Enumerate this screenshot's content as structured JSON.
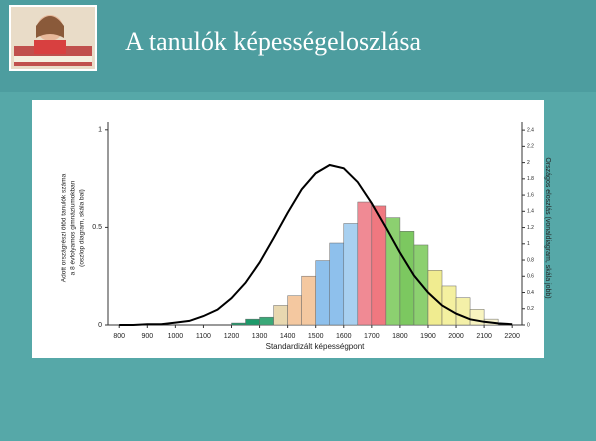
{
  "chart_data": {
    "type": "histogram",
    "title": "A tanulók képességeloszlása",
    "xlabel": "Standardizált képességpont",
    "ylabel": [
      "Adott országrészi ötöd tanulók száma",
      "a 8 évfolyamos gimnáziumokban",
      "(oszlop diagram, skála bal)"
    ],
    "y2label": "Országos eloszlás (vonaldiagram, skála jobb)",
    "bins": [
      1200,
      1250,
      1300,
      1350,
      1400,
      1450,
      1500,
      1550,
      1600,
      1650,
      1700,
      1750,
      1800,
      1850,
      1900,
      1950,
      2000,
      2050,
      2100,
      2150
    ],
    "values": [
      0.01,
      0.03,
      0.04,
      0.1,
      0.15,
      0.25,
      0.33,
      0.42,
      0.52,
      0.63,
      0.61,
      0.55,
      0.48,
      0.41,
      0.28,
      0.2,
      0.14,
      0.08,
      0.03
    ],
    "colors": [
      "#1e9a6a",
      "#1e9a6a",
      "#3aa878",
      "#e8d8b0",
      "#f4c8a0",
      "#f4c8a0",
      "#8ec0ec",
      "#8ec0ec",
      "#a8d0f0",
      "#f08a94",
      "#f07880",
      "#8cd070",
      "#7cc860",
      "#8cd070",
      "#f0ec90",
      "#f4f0a0",
      "#f4f0a8",
      "#f8f4c0",
      "#f8f4d0"
    ],
    "curve": {
      "type": "line",
      "axis": "y2",
      "color": "#000000",
      "x": [
        800,
        850,
        900,
        950,
        1000,
        1050,
        1100,
        1150,
        1200,
        1250,
        1300,
        1350,
        1400,
        1450,
        1500,
        1550,
        1600,
        1650,
        1700,
        1750,
        1800,
        1850,
        1900,
        1950,
        2000,
        2050,
        2100,
        2150,
        2200
      ],
      "values": [
        0,
        0,
        0.01,
        0.01,
        0.03,
        0.05,
        0.11,
        0.19,
        0.33,
        0.52,
        0.77,
        1.07,
        1.38,
        1.67,
        1.87,
        1.97,
        1.93,
        1.76,
        1.5,
        1.2,
        0.89,
        0.61,
        0.4,
        0.24,
        0.14,
        0.07,
        0.04,
        0.02,
        0.01
      ]
    },
    "xlim": [
      760,
      2235
    ],
    "xticks": [
      800,
      900,
      1000,
      1100,
      1200,
      1300,
      1400,
      1500,
      1600,
      1700,
      1800,
      1900,
      2000,
      2100,
      2200
    ],
    "ylim": [
      0,
      1.04
    ],
    "yticks": [
      0,
      0.5,
      1
    ],
    "y2lim": [
      0,
      2.5
    ],
    "y2ticks": [
      0,
      0.2,
      0.4,
      0.6,
      0.8,
      1,
      1.2,
      1.4,
      1.6,
      1.8,
      2,
      2.2,
      2.4
    ]
  }
}
